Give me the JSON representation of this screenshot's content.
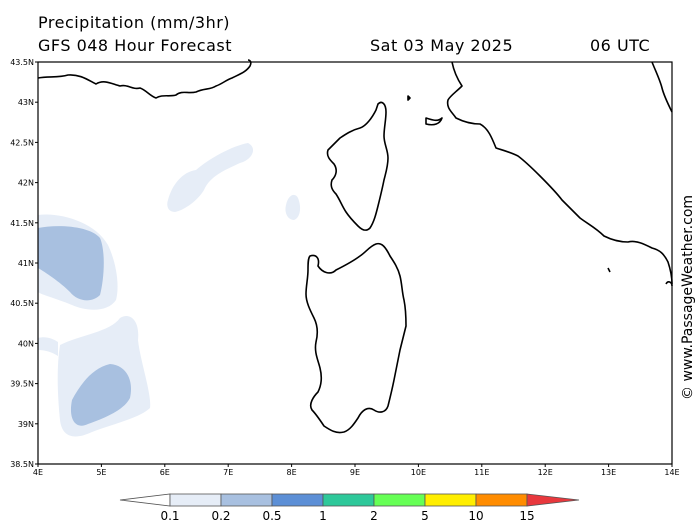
{
  "header": {
    "title": "Precipitation (mm/3hr)",
    "subtitle": "GFS 048 Hour Forecast",
    "date": "Sat 03 May 2025",
    "time": "06 UTC"
  },
  "credit": "© www.PassageWeather.com",
  "axes": {
    "lat_labels": [
      "43.5N",
      "43N",
      "42.5N",
      "42N",
      "41.5N",
      "41N",
      "40.5N",
      "40N",
      "39.5N",
      "39N",
      "38.5N"
    ],
    "lon_labels": [
      "4E",
      "5E",
      "6E",
      "7E",
      "8E",
      "9E",
      "10E",
      "11E",
      "12E",
      "13E",
      "14E"
    ]
  },
  "legend": {
    "values": [
      "0.1",
      "0.2",
      "0.5",
      "1",
      "2",
      "5",
      "10",
      "15"
    ],
    "colors": [
      "#ffffff",
      "#e6edf7",
      "#a8c0e0",
      "#5c8fd6",
      "#2ec89a",
      "#66ff55",
      "#ffee00",
      "#ff8c00",
      "#e8383d"
    ]
  }
}
